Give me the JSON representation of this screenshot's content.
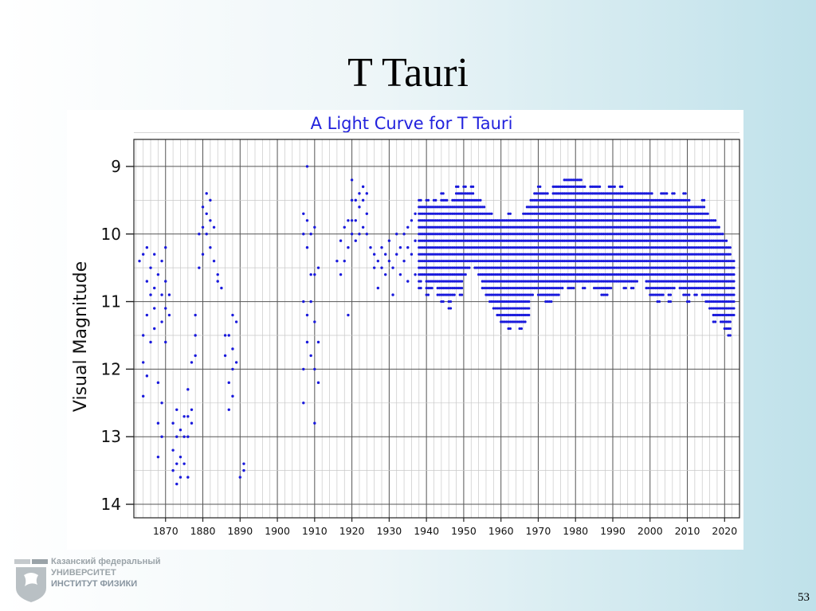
{
  "slide": {
    "title": "T Tauri",
    "page_number": "53"
  },
  "logo": {
    "line1": "Казанский федеральный",
    "line2": "УНИВЕРСИТЕТ",
    "line3": "ИНСТИТУТ ФИЗИКИ"
  },
  "colors": {
    "points": "#1a1adc",
    "title": "#2222dd",
    "grid": "#888888"
  },
  "chart_data": {
    "type": "scatter",
    "title": "A Light Curve for T Tauri",
    "xlabel": "",
    "ylabel": "Visual Magnitude",
    "xlim": [
      1861.5,
      2024
    ],
    "ylim": [
      14.2,
      8.6
    ],
    "y_inverted": true,
    "grid": true,
    "xticks": [
      1870,
      1880,
      1890,
      1900,
      1910,
      1920,
      1930,
      1940,
      1950,
      1960,
      1970,
      1980,
      1990,
      2000,
      2010,
      2020
    ],
    "yticks": [
      9,
      10,
      11,
      12,
      13,
      14
    ],
    "series": [
      {
        "points": [
          [
            1863,
            10.4
          ],
          [
            1864,
            10.3
          ],
          [
            1864,
            11.5
          ],
          [
            1864,
            11.9
          ],
          [
            1864,
            12.4
          ],
          [
            1865,
            10.2
          ],
          [
            1865,
            10.7
          ],
          [
            1865,
            11.2
          ],
          [
            1865,
            12.1
          ],
          [
            1866,
            10.5
          ],
          [
            1866,
            10.9
          ],
          [
            1866,
            11.6
          ],
          [
            1867,
            10.3
          ],
          [
            1867,
            10.8
          ],
          [
            1867,
            11.1
          ],
          [
            1867,
            11.4
          ],
          [
            1868,
            10.6
          ],
          [
            1868,
            12.2
          ],
          [
            1868,
            12.8
          ],
          [
            1868,
            13.3
          ],
          [
            1869,
            10.4
          ],
          [
            1869,
            10.9
          ],
          [
            1869,
            11.3
          ],
          [
            1869,
            12.5
          ],
          [
            1869,
            13.0
          ],
          [
            1870,
            10.2
          ],
          [
            1870,
            10.7
          ],
          [
            1870,
            11.1
          ],
          [
            1870,
            11.6
          ],
          [
            1871,
            10.9
          ],
          [
            1871,
            11.2
          ],
          [
            1872,
            12.8
          ],
          [
            1872,
            13.2
          ],
          [
            1872,
            13.5
          ],
          [
            1873,
            12.6
          ],
          [
            1873,
            13.0
          ],
          [
            1873,
            13.4
          ],
          [
            1873,
            13.7
          ],
          [
            1874,
            12.9
          ],
          [
            1874,
            13.3
          ],
          [
            1874,
            13.6
          ],
          [
            1875,
            12.7
          ],
          [
            1875,
            13.0
          ],
          [
            1875,
            13.4
          ],
          [
            1876,
            12.3
          ],
          [
            1876,
            12.7
          ],
          [
            1876,
            13.0
          ],
          [
            1876,
            13.6
          ],
          [
            1877,
            12.6
          ],
          [
            1877,
            12.8
          ],
          [
            1877,
            11.9
          ],
          [
            1878,
            11.2
          ],
          [
            1878,
            11.5
          ],
          [
            1878,
            11.8
          ],
          [
            1879,
            10.0
          ],
          [
            1879,
            10.5
          ],
          [
            1880,
            9.6
          ],
          [
            1880,
            9.9
          ],
          [
            1880,
            10.3
          ],
          [
            1881,
            9.4
          ],
          [
            1881,
            9.7
          ],
          [
            1881,
            10.0
          ],
          [
            1882,
            9.5
          ],
          [
            1882,
            9.8
          ],
          [
            1882,
            10.2
          ],
          [
            1883,
            9.9
          ],
          [
            1883,
            10.4
          ],
          [
            1884,
            10.6
          ],
          [
            1884,
            10.7
          ],
          [
            1885,
            10.8
          ],
          [
            1886,
            11.5
          ],
          [
            1886,
            11.8
          ],
          [
            1887,
            11.5
          ],
          [
            1887,
            12.2
          ],
          [
            1887,
            12.6
          ],
          [
            1888,
            11.2
          ],
          [
            1888,
            11.7
          ],
          [
            1888,
            12.0
          ],
          [
            1888,
            12.4
          ],
          [
            1889,
            11.3
          ],
          [
            1889,
            11.9
          ],
          [
            1890,
            13.6
          ],
          [
            1891,
            13.4
          ],
          [
            1891,
            13.5
          ],
          [
            1907,
            9.7
          ],
          [
            1907,
            10.0
          ],
          [
            1907,
            11.0
          ],
          [
            1907,
            12.0
          ],
          [
            1907,
            12.5
          ],
          [
            1908,
            9.0
          ],
          [
            1908,
            9.8
          ],
          [
            1908,
            10.2
          ],
          [
            1908,
            11.2
          ],
          [
            1908,
            11.6
          ],
          [
            1909,
            10.0
          ],
          [
            1909,
            10.6
          ],
          [
            1909,
            11.0
          ],
          [
            1909,
            11.8
          ],
          [
            1910,
            9.9
          ],
          [
            1910,
            10.6
          ],
          [
            1910,
            11.3
          ],
          [
            1910,
            12.0
          ],
          [
            1910,
            12.8
          ],
          [
            1911,
            10.5
          ],
          [
            1911,
            11.6
          ],
          [
            1911,
            12.2
          ],
          [
            1916,
            10.4
          ],
          [
            1917,
            10.1
          ],
          [
            1917,
            10.6
          ],
          [
            1918,
            9.9
          ],
          [
            1918,
            10.4
          ],
          [
            1919,
            9.8
          ],
          [
            1919,
            10.2
          ],
          [
            1919,
            11.2
          ],
          [
            1920,
            9.2
          ],
          [
            1920,
            9.5
          ],
          [
            1920,
            9.8
          ],
          [
            1920,
            10.0
          ],
          [
            1921,
            9.5
          ],
          [
            1921,
            9.8
          ],
          [
            1921,
            10.1
          ],
          [
            1922,
            9.4
          ],
          [
            1922,
            9.6
          ],
          [
            1922,
            10.0
          ],
          [
            1923,
            9.3
          ],
          [
            1923,
            9.5
          ],
          [
            1923,
            9.9
          ],
          [
            1924,
            9.4
          ],
          [
            1924,
            9.7
          ],
          [
            1924,
            10.0
          ],
          [
            1925,
            10.2
          ],
          [
            1926,
            10.3
          ],
          [
            1926,
            10.5
          ],
          [
            1927,
            10.4
          ],
          [
            1927,
            10.8
          ],
          [
            1928,
            10.2
          ],
          [
            1928,
            10.5
          ],
          [
            1929,
            10.3
          ],
          [
            1929,
            10.6
          ],
          [
            1930,
            10.1
          ],
          [
            1930,
            10.4
          ],
          [
            1931,
            10.5
          ],
          [
            1931,
            10.9
          ],
          [
            1932,
            10.0
          ],
          [
            1932,
            10.3
          ],
          [
            1933,
            10.2
          ],
          [
            1933,
            10.6
          ],
          [
            1934,
            10.0
          ],
          [
            1934,
            10.4
          ],
          [
            1935,
            9.9
          ],
          [
            1935,
            10.2
          ],
          [
            1935,
            10.7
          ],
          [
            1936,
            9.8
          ],
          [
            1936,
            10.3
          ],
          [
            1937,
            9.7
          ],
          [
            1937,
            10.1
          ],
          [
            1937,
            10.6
          ]
        ],
        "bands": [
          [
            1938,
            9.5,
            10.8
          ],
          [
            1939,
            9.6,
            10.6
          ],
          [
            1940,
            9.5,
            10.9
          ],
          [
            1941,
            9.6,
            10.8
          ],
          [
            1942,
            9.5,
            10.7
          ],
          [
            1943,
            9.6,
            10.9
          ],
          [
            1944,
            9.4,
            11.0
          ],
          [
            1945,
            9.5,
            10.9
          ],
          [
            1946,
            9.6,
            11.1
          ],
          [
            1947,
            9.5,
            10.9
          ],
          [
            1948,
            9.3,
            10.8
          ],
          [
            1949,
            9.4,
            10.9
          ],
          [
            1950,
            9.3,
            10.6
          ],
          [
            1951,
            9.4,
            10.5
          ],
          [
            1952,
            9.3,
            10.4
          ],
          [
            1953,
            9.5,
            10.5
          ],
          [
            1954,
            9.5,
            10.6
          ],
          [
            1955,
            9.6,
            10.8
          ],
          [
            1956,
            9.7,
            10.9
          ],
          [
            1957,
            9.7,
            11.0
          ],
          [
            1958,
            9.8,
            11.1
          ],
          [
            1959,
            9.8,
            11.2
          ],
          [
            1960,
            9.8,
            11.3
          ],
          [
            1961,
            9.8,
            11.3
          ],
          [
            1962,
            9.7,
            11.4
          ],
          [
            1963,
            9.8,
            11.3
          ],
          [
            1964,
            9.8,
            11.3
          ],
          [
            1965,
            9.8,
            11.4
          ],
          [
            1966,
            9.7,
            11.3
          ],
          [
            1967,
            9.6,
            11.2
          ],
          [
            1968,
            9.5,
            10.9
          ],
          [
            1969,
            9.4,
            10.8
          ],
          [
            1970,
            9.3,
            10.9
          ],
          [
            1971,
            9.4,
            10.9
          ],
          [
            1972,
            9.4,
            11.0
          ],
          [
            1973,
            9.5,
            11.0
          ],
          [
            1974,
            9.3,
            10.9
          ],
          [
            1975,
            9.3,
            10.9
          ],
          [
            1976,
            9.3,
            10.8
          ],
          [
            1977,
            9.2,
            10.7
          ],
          [
            1978,
            9.2,
            10.8
          ],
          [
            1979,
            9.2,
            10.8
          ],
          [
            1980,
            9.2,
            10.7
          ],
          [
            1981,
            9.2,
            10.7
          ],
          [
            1982,
            9.3,
            10.8
          ],
          [
            1983,
            9.4,
            10.7
          ],
          [
            1984,
            9.3,
            10.7
          ],
          [
            1985,
            9.3,
            10.8
          ],
          [
            1986,
            9.3,
            10.8
          ],
          [
            1987,
            9.4,
            10.9
          ],
          [
            1988,
            9.4,
            10.9
          ],
          [
            1989,
            9.3,
            10.8
          ],
          [
            1990,
            9.3,
            10.7
          ],
          [
            1991,
            9.4,
            10.7
          ],
          [
            1992,
            9.3,
            10.7
          ],
          [
            1993,
            9.4,
            10.8
          ],
          [
            1994,
            9.4,
            10.7
          ],
          [
            1995,
            9.4,
            10.8
          ],
          [
            1996,
            9.4,
            10.7
          ],
          [
            1997,
            9.4,
            10.6
          ],
          [
            1998,
            9.4,
            10.6
          ],
          [
            1999,
            9.4,
            10.8
          ],
          [
            2000,
            9.4,
            10.9
          ],
          [
            2001,
            9.5,
            10.9
          ],
          [
            2002,
            9.5,
            11.0
          ],
          [
            2003,
            9.4,
            10.9
          ],
          [
            2004,
            9.4,
            10.8
          ],
          [
            2005,
            9.5,
            11.0
          ],
          [
            2006,
            9.4,
            10.8
          ],
          [
            2007,
            9.5,
            10.7
          ],
          [
            2008,
            9.5,
            10.8
          ],
          [
            2009,
            9.4,
            10.9
          ],
          [
            2010,
            9.5,
            11.0
          ],
          [
            2011,
            9.6,
            10.8
          ],
          [
            2012,
            9.6,
            10.9
          ],
          [
            2013,
            9.6,
            10.8
          ],
          [
            2014,
            9.5,
            10.9
          ],
          [
            2015,
            9.7,
            11.0
          ],
          [
            2016,
            9.8,
            11.1
          ],
          [
            2017,
            9.8,
            11.3
          ],
          [
            2018,
            9.9,
            11.2
          ],
          [
            2019,
            10.0,
            11.3
          ],
          [
            2020,
            10.1,
            11.4
          ],
          [
            2021,
            10.2,
            11.5
          ],
          [
            2022,
            10.4,
            11.2
          ]
        ]
      }
    ]
  }
}
